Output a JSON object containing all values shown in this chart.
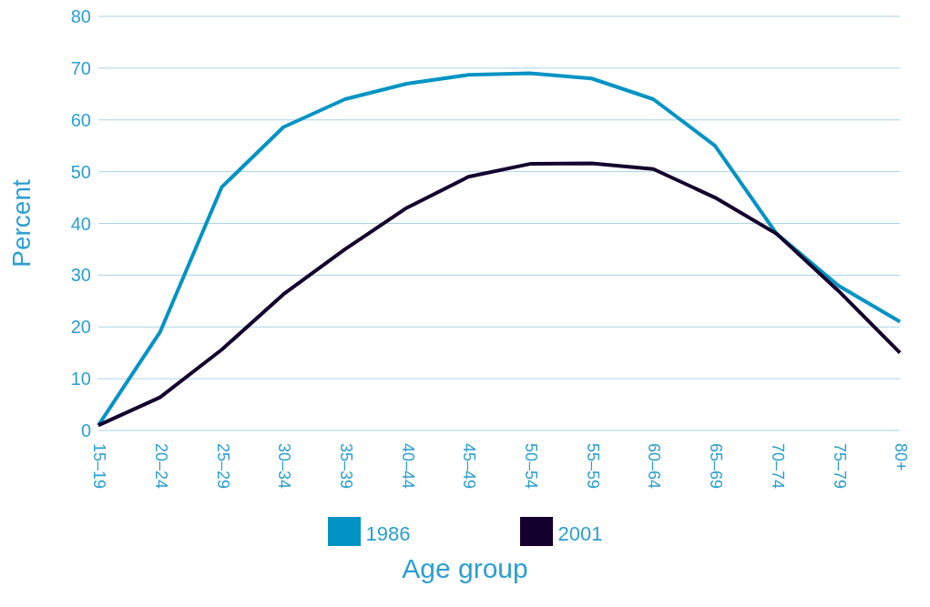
{
  "chart_data": {
    "type": "line",
    "xlabel": "Age group",
    "ylabel": "Percent",
    "categories": [
      "15–19",
      "20–24",
      "25–29",
      "30–34",
      "35–39",
      "40–44",
      "45–49",
      "50–54",
      "55–59",
      "60–64",
      "65–69",
      "70–74",
      "75–79",
      "80+"
    ],
    "series": [
      {
        "name": "1986",
        "color": "#0093c4",
        "values": [
          1,
          19,
          47,
          58.6,
          64,
          67,
          68.7,
          69,
          68,
          64,
          55,
          38,
          28,
          21
        ]
      },
      {
        "name": "2001",
        "color": "#14002e",
        "values": [
          1,
          6.4,
          15.6,
          26.3,
          35,
          43,
          49,
          51.5,
          51.6,
          50.5,
          45,
          38,
          27,
          15
        ]
      }
    ],
    "ylim": [
      0,
      80
    ],
    "yticks": [
      0,
      10,
      20,
      30,
      40,
      50,
      60,
      70,
      80
    ],
    "grid": "y",
    "legend": "bottom",
    "marker": "none",
    "line_style": "solid"
  }
}
